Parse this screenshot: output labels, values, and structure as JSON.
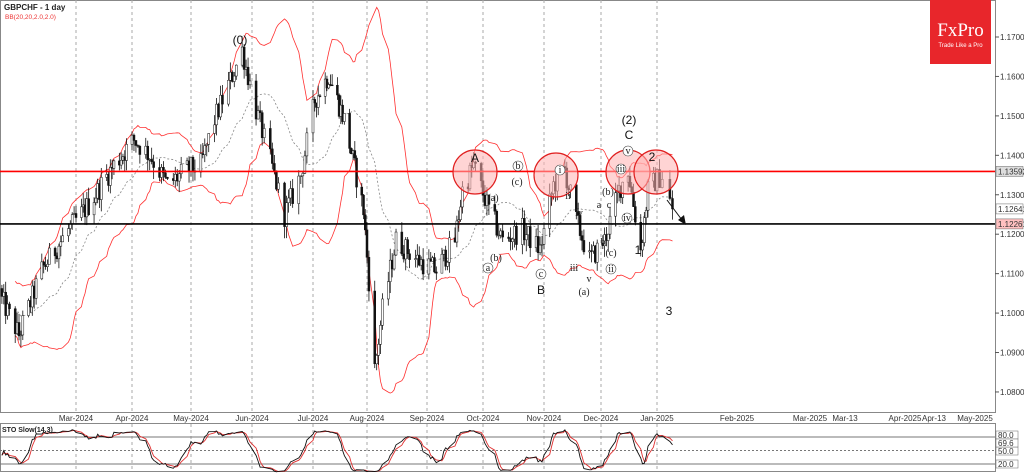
{
  "header": {
    "title": "GBPCHF - 1 day",
    "indicator": "BB(20,20,2.0,2.0)"
  },
  "logo": {
    "brand": "FxPro",
    "tagline": "Trade Like a Pro",
    "color": "#e8262b"
  },
  "colors": {
    "resistance": "#ff0000",
    "support": "#000000",
    "bands": "#ff3030",
    "mid_band": "#888888",
    "circle_fill": "#ffb0b0"
  },
  "chart_data": {
    "type": "ohlc-bar",
    "symbol": "GBPCHF",
    "timeframe": "1 day",
    "ylim": [
      1.075,
      1.18
    ],
    "y_ticks": [
      "1.17000",
      "1.16000",
      "1.15000",
      "1.14000",
      "1.13000",
      "1.12000",
      "1.11000",
      "1.10000",
      "1.09000",
      "1.08000"
    ],
    "x_ticks": [
      "Mar-2024",
      "Apr-2024",
      "May-2024",
      "Jun-2024",
      "Jul-2024",
      "Aug-2024",
      "Sep-2024",
      "Oct-2024",
      "Nov-2024",
      "Dec-2024",
      "Jan-2025",
      "Feb-2025",
      "Mar-2025",
      "Mar-13",
      "Apr-2025",
      "Apr-13",
      "May-2025"
    ],
    "approx_closes": [
      [
        "2024-01-22",
        1.1033
      ],
      [
        "2024-01-31",
        1.0944
      ],
      [
        "2024-02-12",
        1.1109
      ],
      [
        "2024-02-26",
        1.1211
      ],
      [
        "2024-03-08",
        1.1274
      ],
      [
        "2024-03-22",
        1.1375
      ],
      [
        "2024-04-02",
        1.1439
      ],
      [
        "2024-04-10",
        1.1401
      ],
      [
        "2024-04-19",
        1.1325
      ],
      [
        "2024-04-29",
        1.1363
      ],
      [
        "2024-05-06",
        1.1375
      ],
      [
        "2024-05-13",
        1.149
      ],
      [
        "2024-05-21",
        1.1591
      ],
      [
        "2024-05-27",
        1.1667
      ],
      [
        "2024-06-03",
        1.1515
      ],
      [
        "2024-06-10",
        1.1388
      ],
      [
        "2024-06-17",
        1.1249
      ],
      [
        "2024-06-25",
        1.135
      ],
      [
        "2024-07-02",
        1.154
      ],
      [
        "2024-07-10",
        1.1604
      ],
      [
        "2024-07-19",
        1.149
      ],
      [
        "2024-07-24",
        1.1388
      ],
      [
        "2024-07-30",
        1.1261
      ],
      [
        "2024-08-02",
        1.1084
      ],
      [
        "2024-08-05",
        1.0856
      ],
      [
        "2024-08-09",
        1.1008
      ],
      [
        "2024-08-16",
        1.1185
      ],
      [
        "2024-08-27",
        1.1135
      ],
      [
        "2024-09-06",
        1.1109
      ],
      [
        "2024-09-16",
        1.1185
      ],
      [
        "2024-09-20",
        1.1312
      ],
      [
        "2024-09-26",
        1.1375
      ],
      [
        "2024-10-04",
        1.1261
      ],
      [
        "2024-10-11",
        1.1185
      ],
      [
        "2024-10-21",
        1.1211
      ],
      [
        "2024-10-30",
        1.116
      ],
      [
        "2024-11-06",
        1.1325
      ],
      [
        "2024-11-12",
        1.1363
      ],
      [
        "2024-11-18",
        1.1236
      ],
      [
        "2024-11-25",
        1.1135
      ],
      [
        "2024-12-03",
        1.1185
      ],
      [
        "2024-12-11",
        1.1312
      ],
      [
        "2024-12-16",
        1.1363
      ],
      [
        "2024-12-23",
        1.116
      ],
      [
        "2024-12-27",
        1.1312
      ],
      [
        "2025-01-03",
        1.135
      ],
      [
        "2025-01-07",
        1.1264
      ]
    ],
    "levels": [
      {
        "label": "1.13592",
        "price": 1.13592,
        "color": "#ff0000"
      },
      {
        "label": "1.12261",
        "price": 1.12261,
        "color": "#000000"
      }
    ],
    "current_price_label": "1.12641",
    "wave_labels": [
      "(0)",
      "A",
      "b",
      "(c)",
      "(a)",
      "(b)",
      "a",
      "c",
      "B",
      "i",
      "ii",
      "iv",
      "iii",
      "v",
      "(a)",
      "(b)",
      "a",
      "c",
      "b",
      "(c)",
      "ii",
      "iii",
      "v",
      "iv",
      "(2)",
      "C",
      "2",
      "1",
      "3"
    ],
    "stochastic": {
      "label": "STO Slow(14,3)",
      "levels": [
        "80.0",
        "50.0",
        "20.0"
      ],
      "current": "69.6"
    }
  }
}
